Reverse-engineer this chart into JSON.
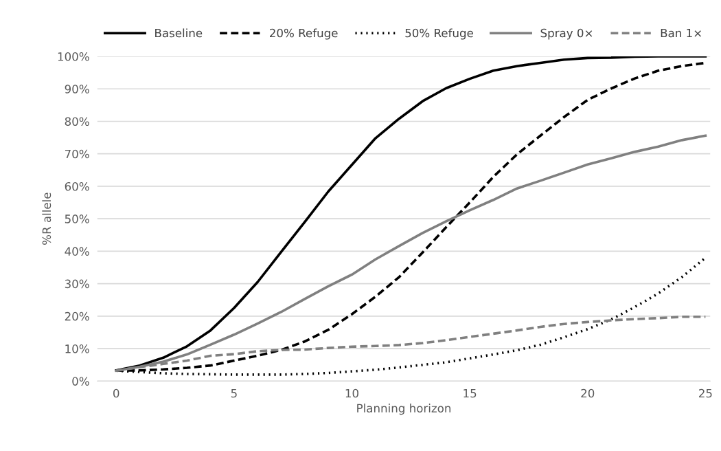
{
  "chart_data": {
    "type": "line",
    "xlabel": "Planning horizon",
    "ylabel": "%R allele",
    "x": [
      0,
      1,
      2,
      3,
      4,
      5,
      6,
      7,
      8,
      9,
      10,
      11,
      12,
      13,
      14,
      15,
      16,
      17,
      18,
      19,
      20,
      21,
      22,
      23,
      24,
      25
    ],
    "xlim": [
      -0.8,
      25.2
    ],
    "xticks": [
      0,
      5,
      10,
      15,
      20,
      25
    ],
    "ylim": [
      0,
      100
    ],
    "yticks": [
      {
        "value": 0,
        "label": "0%"
      },
      {
        "value": 10,
        "label": "10%"
      },
      {
        "value": 20,
        "label": "20%"
      },
      {
        "value": 30,
        "label": "30%"
      },
      {
        "value": 40,
        "label": "40%"
      },
      {
        "value": 50,
        "label": "50%"
      },
      {
        "value": 60,
        "label": "60%"
      },
      {
        "value": 70,
        "label": "70%"
      },
      {
        "value": 80,
        "label": "80%"
      },
      {
        "value": 90,
        "label": "90%"
      },
      {
        "value": 100,
        "label": "100%"
      }
    ],
    "grid": "y",
    "legend": "top",
    "marker": "none",
    "series": [
      {
        "name": "Baseline",
        "color": "#000000",
        "line_style": "solid",
        "values": [
          3.3,
          4.8,
          7.2,
          10.7,
          15.6,
          22.5,
          30.5,
          39.8,
          49,
          58.4,
          66.6,
          74.8,
          80.8,
          86.2,
          90.2,
          93.1,
          95.6,
          97,
          98,
          99,
          99.5,
          99.6,
          99.9,
          100,
          100,
          100
        ]
      },
      {
        "name": "20% Refuge",
        "color": "#000000",
        "line_style": "dashed",
        "values": [
          3.2,
          3.3,
          3.6,
          4.1,
          4.8,
          6.3,
          7.8,
          9.6,
          12.2,
          15.8,
          20.6,
          26,
          32,
          39.6,
          47.4,
          55,
          62.9,
          69.8,
          75.6,
          81.3,
          86.6,
          90.1,
          93.2,
          95.6,
          97,
          98
        ]
      },
      {
        "name": "50% Refuge",
        "color": "#000000",
        "line_style": "dotted",
        "values": [
          3.2,
          2.8,
          2.4,
          2.2,
          2.1,
          2,
          2,
          2,
          2.2,
          2.5,
          3,
          3.5,
          4.2,
          5,
          5.8,
          7,
          8.2,
          9.5,
          11.2,
          13.5,
          16,
          19,
          22.8,
          27,
          32,
          38
        ]
      },
      {
        "name": "Spray 0×",
        "color": "#808080",
        "line_style": "solid",
        "values": [
          3.2,
          4.4,
          6,
          8.2,
          11.2,
          14.3,
          17.7,
          21.3,
          25.3,
          29.2,
          32.8,
          37.5,
          41.6,
          45.6,
          49.2,
          52.6,
          55.8,
          59.3,
          61.7,
          64.2,
          66.7,
          68.6,
          70.6,
          72.2,
          74.2,
          75.6
        ]
      },
      {
        "name": "Ban 1×",
        "color": "#808080",
        "line_style": "dashed",
        "values": [
          3.2,
          4.3,
          5.3,
          6.3,
          7.8,
          8.3,
          9.2,
          9.6,
          9.7,
          10.2,
          10.6,
          10.8,
          11.1,
          11.7,
          12.6,
          13.6,
          14.6,
          15.6,
          16.7,
          17.6,
          18.2,
          18.7,
          19.1,
          19.4,
          19.8,
          19.8
        ]
      }
    ]
  }
}
